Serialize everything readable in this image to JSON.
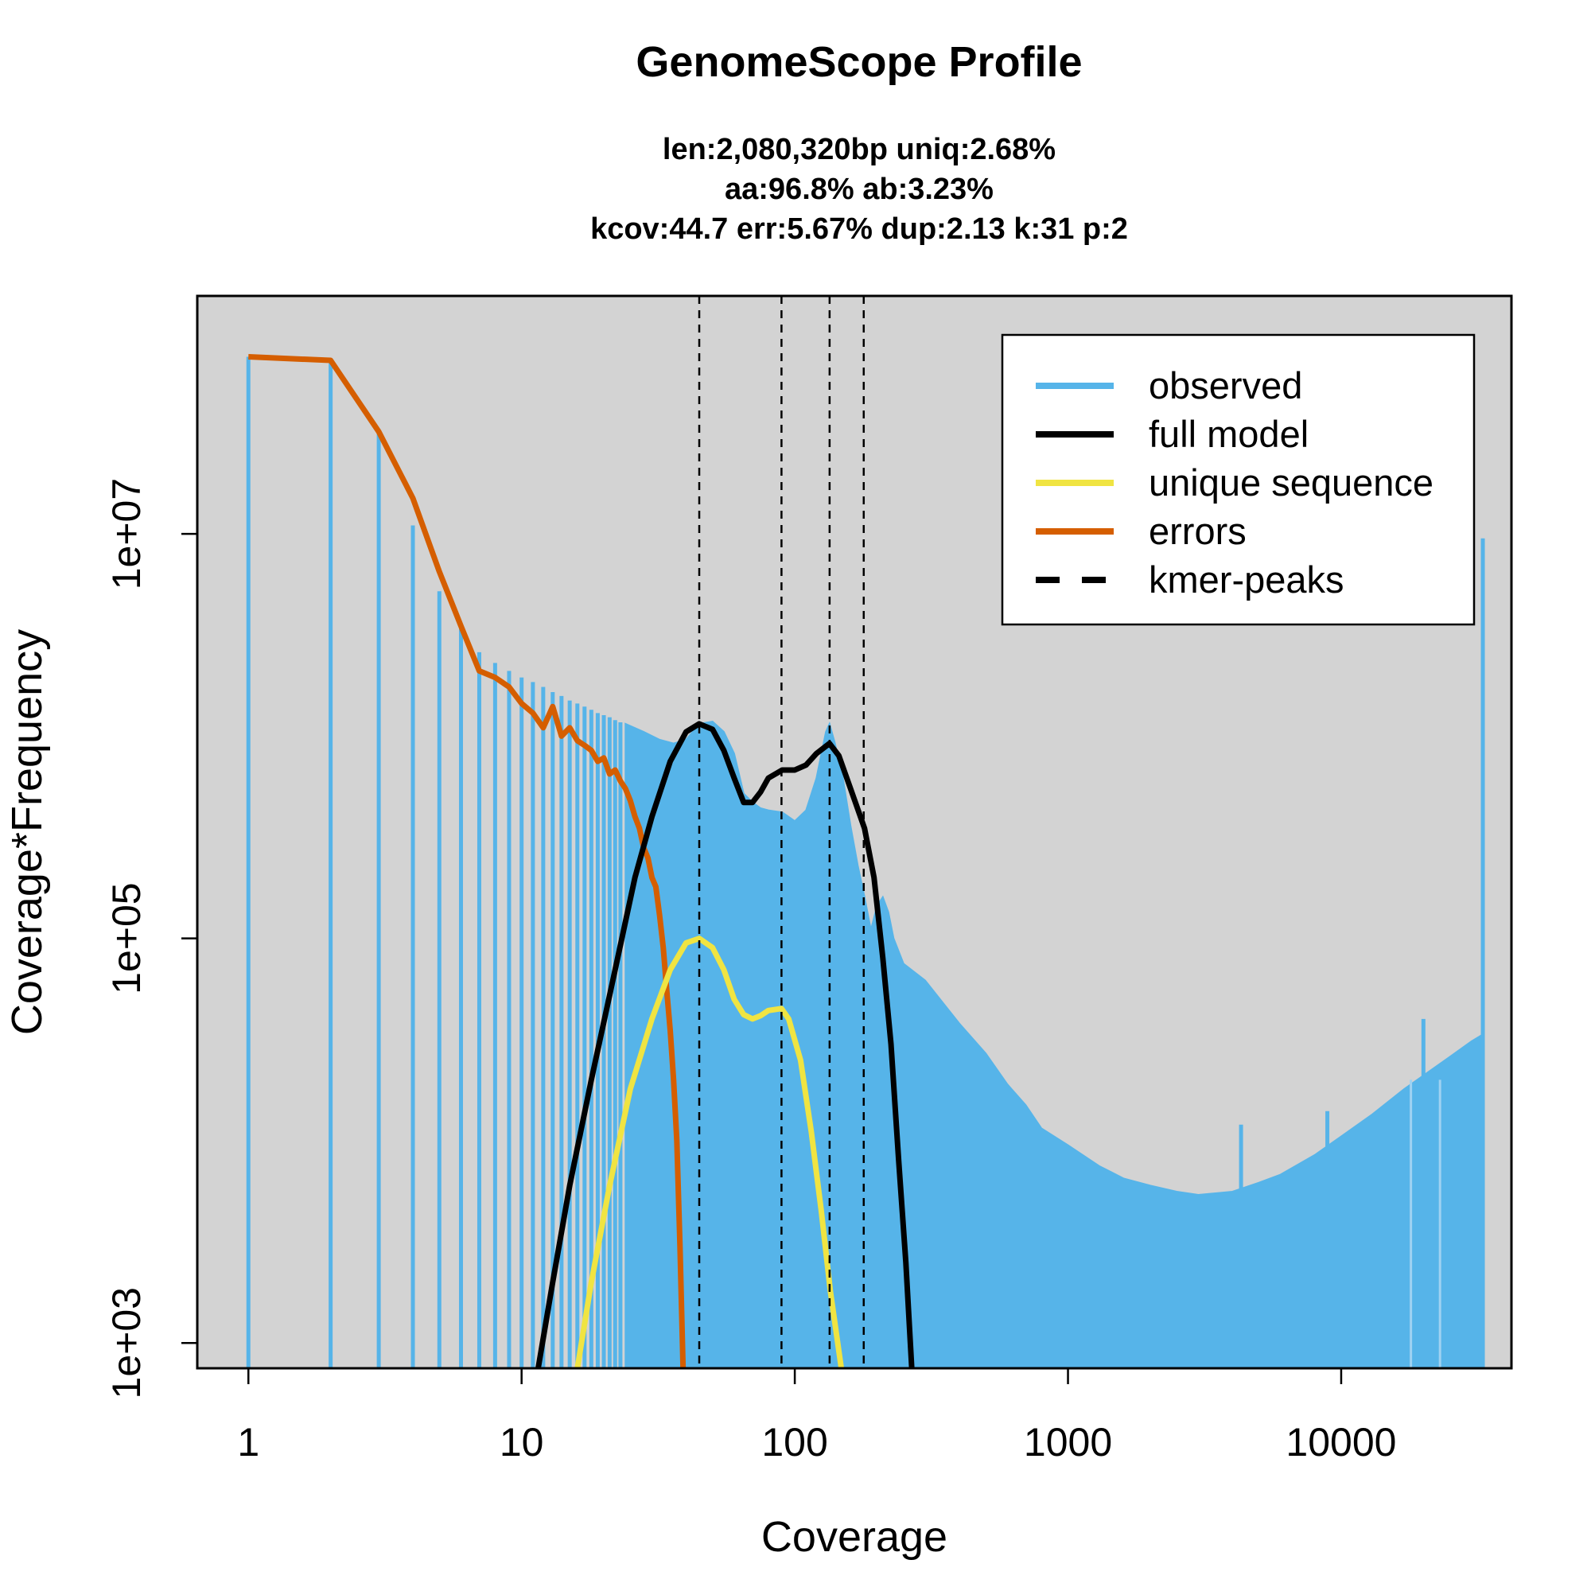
{
  "chart_data": {
    "type": "area",
    "title": "GenomeScope Profile",
    "subtitle_lines": [
      "len:2,080,320bp uniq:2.68%",
      "aa:96.8% ab:3.23%",
      "kcov:44.7 err:5.67%  dup:2.13  k:31 p:2"
    ],
    "xlabel": "Coverage",
    "ylabel": "Coverage*Frequency",
    "x_scale": "log",
    "y_scale": "log",
    "xlim": [
      0.65,
      42000
    ],
    "ylim": [
      750,
      150000000
    ],
    "x_ticks": [
      1,
      10,
      100,
      1000,
      10000
    ],
    "x_tick_labels": [
      "1",
      "10",
      "100",
      "1000",
      "10000"
    ],
    "y_ticks": [
      1000,
      100000,
      10000000
    ],
    "y_tick_labels": [
      "1e+03",
      "1e+05",
      "1e+07"
    ],
    "grid": false,
    "legend_position": "top-right",
    "colors": {
      "observed": "#56B4E9",
      "full_model": "#000000",
      "unique_sequence": "#F0E442",
      "errors": "#D55E00",
      "kmer_peaks": "#000000",
      "plot_background": "#D3D3D3"
    },
    "legend": [
      {
        "label": "observed",
        "key": "observed",
        "style": "solid"
      },
      {
        "label": "full model",
        "key": "full_model",
        "style": "solid"
      },
      {
        "label": "unique sequence",
        "key": "unique_sequence",
        "style": "solid"
      },
      {
        "label": "errors",
        "key": "errors",
        "style": "solid"
      },
      {
        "label": "kmer-peaks",
        "key": "kmer_peaks",
        "style": "dashed"
      }
    ],
    "kmer_peaks": [
      44.7,
      89.4,
      134.1,
      178.8
    ],
    "observed": {
      "name": "observed",
      "sparse_bars": [
        [
          1,
          75000000
        ],
        [
          2,
          72000000
        ],
        [
          3,
          32000000
        ],
        [
          4,
          11000000
        ],
        [
          5,
          5200000
        ],
        [
          6,
          3500000
        ],
        [
          7,
          2600000
        ],
        [
          8,
          2300000
        ],
        [
          9,
          2100000
        ],
        [
          10,
          1950000
        ],
        [
          11,
          1850000
        ],
        [
          12,
          1750000
        ],
        [
          13,
          1650000
        ],
        [
          14,
          1580000
        ],
        [
          15,
          1500000
        ],
        [
          16,
          1450000
        ],
        [
          17,
          1400000
        ],
        [
          18,
          1350000
        ],
        [
          19,
          1300000
        ],
        [
          20,
          1270000
        ],
        [
          21,
          1240000
        ],
        [
          22,
          1200000
        ],
        [
          23,
          1170000
        ]
      ],
      "dense_outline": [
        [
          24,
          1150000
        ],
        [
          28,
          1050000
        ],
        [
          32,
          960000
        ],
        [
          36,
          920000
        ],
        [
          40,
          960000
        ],
        [
          44.7,
          1150000
        ],
        [
          50,
          1180000
        ],
        [
          55,
          1050000
        ],
        [
          60,
          820000
        ],
        [
          65,
          520000
        ],
        [
          70,
          470000
        ],
        [
          75,
          440000
        ],
        [
          80,
          430000
        ],
        [
          90,
          420000
        ],
        [
          100,
          380000
        ],
        [
          110,
          430000
        ],
        [
          120,
          620000
        ],
        [
          130,
          1050000
        ],
        [
          134,
          1150000
        ],
        [
          140,
          930000
        ],
        [
          150,
          620000
        ],
        [
          160,
          360000
        ],
        [
          170,
          230000
        ],
        [
          180,
          160000
        ],
        [
          190,
          110000
        ],
        [
          200,
          145000
        ],
        [
          210,
          160000
        ],
        [
          220,
          135000
        ],
        [
          230,
          100000
        ],
        [
          250,
          75000
        ],
        [
          300,
          62000
        ],
        [
          400,
          38000
        ],
        [
          500,
          27000
        ],
        [
          600,
          19000
        ],
        [
          700,
          15000
        ],
        [
          800,
          11500
        ],
        [
          1000,
          9500
        ],
        [
          1300,
          7500
        ],
        [
          1600,
          6500
        ],
        [
          2000,
          6000
        ],
        [
          2500,
          5600
        ],
        [
          3000,
          5400
        ],
        [
          4000,
          5600
        ],
        [
          5000,
          6200
        ],
        [
          6000,
          6800
        ],
        [
          8000,
          8500
        ],
        [
          10000,
          10500
        ],
        [
          13000,
          13500
        ],
        [
          17000,
          18000
        ],
        [
          20000,
          21000
        ],
        [
          25000,
          26000
        ],
        [
          30000,
          31000
        ],
        [
          33000,
          33500
        ]
      ],
      "spikes": [
        [
          4300,
          12000
        ],
        [
          8900,
          14000
        ],
        [
          10300,
          8000
        ],
        [
          12500,
          11500
        ],
        [
          20000,
          40000
        ]
      ],
      "gaps": [
        18000,
        23000
      ],
      "last_bar": [
        33000,
        9500000
      ]
    },
    "full_model": {
      "name": "full model",
      "points": [
        [
          11.5,
          750
        ],
        [
          13,
          2000
        ],
        [
          15,
          6000
        ],
        [
          18,
          20000
        ],
        [
          22,
          70000
        ],
        [
          26,
          200000
        ],
        [
          30,
          400000
        ],
        [
          35,
          750000
        ],
        [
          40,
          1050000
        ],
        [
          44.7,
          1150000
        ],
        [
          50,
          1080000
        ],
        [
          55,
          850000
        ],
        [
          60,
          620000
        ],
        [
          65,
          470000
        ],
        [
          70,
          470000
        ],
        [
          75,
          530000
        ],
        [
          80,
          620000
        ],
        [
          90,
          680000
        ],
        [
          100,
          680000
        ],
        [
          110,
          720000
        ],
        [
          120,
          820000
        ],
        [
          134,
          920000
        ],
        [
          145,
          800000
        ],
        [
          160,
          550000
        ],
        [
          180,
          350000
        ],
        [
          195,
          200000
        ],
        [
          210,
          80000
        ],
        [
          225,
          30000
        ],
        [
          240,
          8000
        ],
        [
          255,
          2500
        ],
        [
          268,
          750
        ]
      ]
    },
    "unique_sequence": {
      "name": "unique sequence",
      "points": [
        [
          16,
          750
        ],
        [
          18,
          2000
        ],
        [
          21,
          6000
        ],
        [
          25,
          18000
        ],
        [
          30,
          40000
        ],
        [
          35,
          70000
        ],
        [
          40,
          95000
        ],
        [
          44.7,
          100000
        ],
        [
          50,
          90000
        ],
        [
          55,
          70000
        ],
        [
          60,
          50000
        ],
        [
          65,
          42000
        ],
        [
          70,
          40000
        ],
        [
          75,
          41500
        ],
        [
          80,
          44000
        ],
        [
          89.4,
          45000
        ],
        [
          95,
          40000
        ],
        [
          105,
          25000
        ],
        [
          115,
          11000
        ],
        [
          125,
          4500
        ],
        [
          135,
          1800
        ],
        [
          148,
          750
        ]
      ]
    },
    "errors": {
      "name": "errors",
      "points": [
        [
          1,
          75000000
        ],
        [
          2,
          72000000
        ],
        [
          3,
          32000000
        ],
        [
          4,
          15000000
        ],
        [
          5,
          6500000
        ],
        [
          6,
          3500000
        ],
        [
          7,
          2100000
        ],
        [
          8,
          1950000
        ],
        [
          9,
          1750000
        ],
        [
          10,
          1450000
        ],
        [
          11,
          1300000
        ],
        [
          12,
          1100000
        ],
        [
          13,
          1400000
        ],
        [
          14,
          1000000
        ],
        [
          15,
          1100000
        ],
        [
          16,
          950000
        ],
        [
          17,
          900000
        ],
        [
          18,
          850000
        ],
        [
          19,
          750000
        ],
        [
          20,
          780000
        ],
        [
          21,
          650000
        ],
        [
          22,
          680000
        ],
        [
          23,
          600000
        ],
        [
          24,
          550000
        ],
        [
          25,
          480000
        ],
        [
          26,
          400000
        ],
        [
          27,
          350000
        ],
        [
          28,
          280000
        ],
        [
          29,
          250000
        ],
        [
          30,
          200000
        ],
        [
          31,
          180000
        ],
        [
          32,
          130000
        ],
        [
          33,
          90000
        ],
        [
          34,
          55000
        ],
        [
          35,
          35000
        ],
        [
          36,
          20000
        ],
        [
          37,
          10000
        ],
        [
          38,
          3000
        ],
        [
          39,
          750
        ]
      ]
    }
  }
}
